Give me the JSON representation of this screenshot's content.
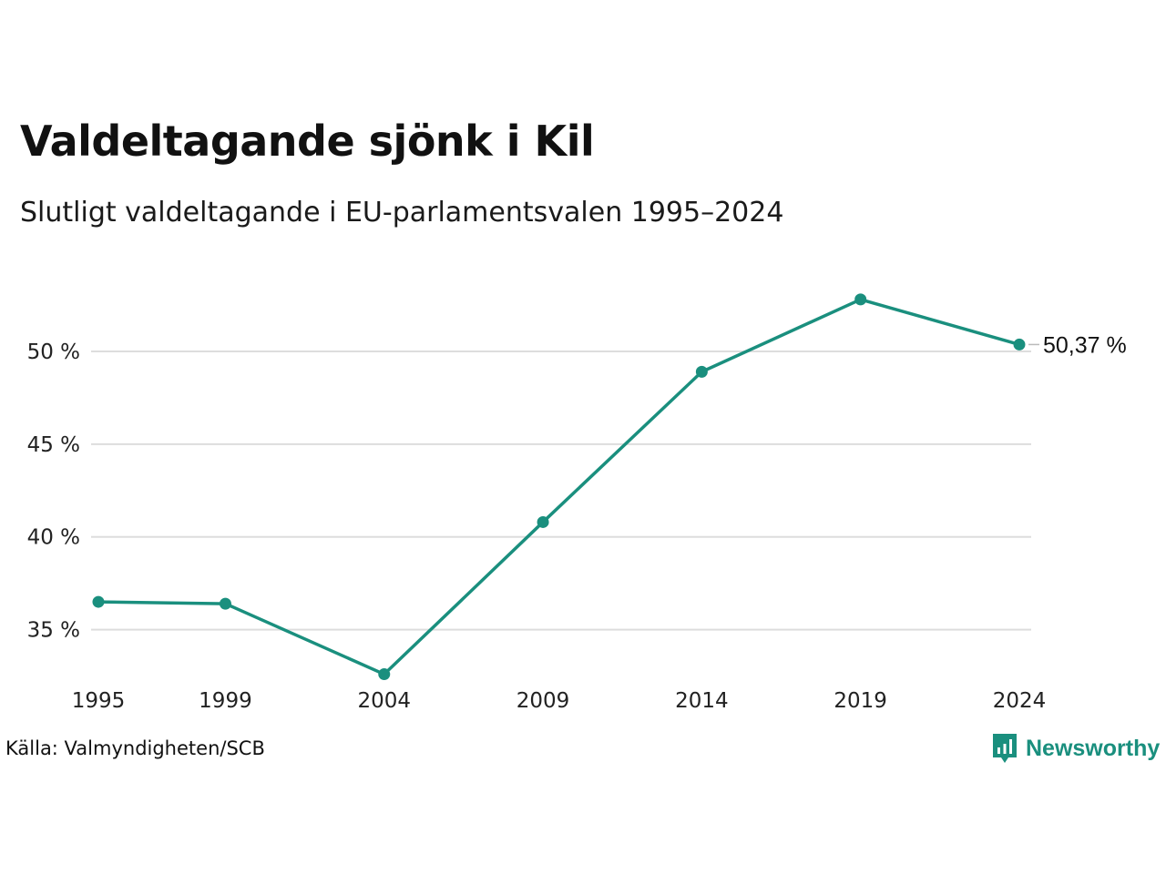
{
  "title": "Valdeltagande sjönk i Kil",
  "subtitle": "Slutligt valdeltagande i EU-parlamentsvalen 1995–2024",
  "source": "Källa: Valmyndigheten/SCB",
  "brand": "Newsworthy",
  "colors": {
    "line": "#1a8f7e",
    "grid": "#dddddd",
    "brand": "#1a8f7e"
  },
  "chart_data": {
    "type": "line",
    "title": "Valdeltagande sjönk i Kil",
    "subtitle": "Slutligt valdeltagande i EU-parlamentsvalen 1995–2024",
    "xlabel": "",
    "ylabel": "",
    "x": [
      1995,
      1999,
      2004,
      2009,
      2014,
      2019,
      2024
    ],
    "x_tick_labels": [
      "1995",
      "1999",
      "2004",
      "2009",
      "2014",
      "2019",
      "2024"
    ],
    "series": [
      {
        "values": [
          36.5,
          36.4,
          32.6,
          40.8,
          48.9,
          52.8,
          50.37
        ]
      }
    ],
    "y_ticks": [
      35,
      40,
      45,
      50
    ],
    "y_tick_labels": [
      "35 %",
      "40 %",
      "45 %",
      "50 %"
    ],
    "ylim": [
      31.4,
      55.2
    ],
    "end_label": "50,37 %",
    "grid": "horizontal",
    "legend": "none"
  }
}
